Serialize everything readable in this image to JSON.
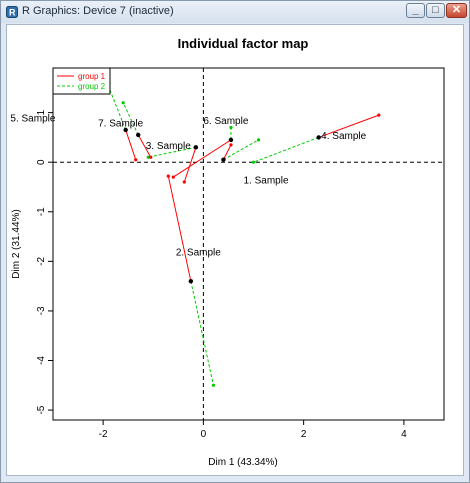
{
  "window": {
    "title": "R Graphics: Device 7 (inactive)",
    "buttons": {
      "minimize_icon": "minimize-icon",
      "maximize_icon": "maximize-icon",
      "close_icon": "close-icon"
    }
  },
  "plot": {
    "title": "Individual factor map",
    "xlabel": "Dim 1 (43.34%)",
    "ylabel": "Dim 2 (31.44%)",
    "xticks": [
      "-2",
      "0",
      "2",
      "4"
    ],
    "yticks": [
      "-5",
      "-4",
      "-3",
      "-2",
      "-1",
      "0",
      "1"
    ],
    "legend": {
      "group1": "group 1",
      "group2": "group 2"
    },
    "colors": {
      "group1": "#ff0000",
      "group2": "#00cc00",
      "axis": "#000000"
    }
  },
  "chart_data": {
    "type": "scatter",
    "title": "Individual factor map",
    "xlabel": "Dim 1 (43.34%)",
    "ylabel": "Dim 2 (31.44%)",
    "xlim": [
      -3.0,
      4.8
    ],
    "ylim": [
      -5.2,
      1.9
    ],
    "grid": false,
    "legend_position": "top-left",
    "reference_lines": {
      "x": 0,
      "y": 0
    },
    "samples": [
      {
        "label": "1. Sample",
        "x": 0.4,
        "y": 0.05,
        "group1": {
          "x": 0.55,
          "y": 0.35
        },
        "group2": {
          "x": 1.1,
          "y": 0.45
        },
        "label_offset": [
          0.4,
          -0.4
        ]
      },
      {
        "label": "2. Sample",
        "x": -0.25,
        "y": -2.4,
        "group1": {
          "x": -0.7,
          "y": -0.28
        },
        "group2": {
          "x": 0.2,
          "y": -4.5
        },
        "label_offset": [
          -0.3,
          0.6
        ]
      },
      {
        "label": "3. Sample",
        "x": -0.15,
        "y": 0.3,
        "group1": {
          "x": -0.38,
          "y": -0.4
        },
        "group2": {
          "x": -1.1,
          "y": 0.1
        },
        "label_offset": [
          -1.0,
          0.05
        ]
      },
      {
        "label": "4. Sample",
        "x": 2.3,
        "y": 0.5,
        "group1": {
          "x": 3.5,
          "y": 0.95
        },
        "group2": {
          "x": 1.0,
          "y": 0.0
        },
        "label_offset": [
          0.05,
          0.05
        ]
      },
      {
        "label": "5. Sample",
        "x": -1.55,
        "y": 0.65,
        "group1": {
          "x": -1.35,
          "y": 0.05
        },
        "group2": {
          "x": -1.9,
          "y": 1.55
        },
        "label_offset": [
          -2.3,
          0.25
        ]
      },
      {
        "label": "6. Sample",
        "x": 0.55,
        "y": 0.45,
        "group1": {
          "x": -0.6,
          "y": -0.3
        },
        "group2": {
          "x": 0.55,
          "y": 0.7
        },
        "label_offset": [
          -0.55,
          0.4
        ]
      },
      {
        "label": "7. Sample",
        "x": -1.3,
        "y": 0.55,
        "group1": {
          "x": -1.05,
          "y": 0.1
        },
        "group2": {
          "x": -1.6,
          "y": 1.2
        },
        "label_offset": [
          -0.8,
          0.25
        ]
      }
    ]
  }
}
